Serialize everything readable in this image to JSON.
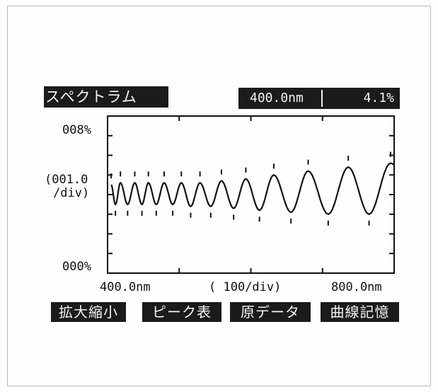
{
  "header": {
    "title": "スペクトラム",
    "cursor_wavelength": "400.0nm",
    "cursor_value": "4.1%"
  },
  "axes": {
    "y_top_label": "008%",
    "y_scale_label": "(001.0",
    "y_unit_label": "/div)",
    "y_bottom_label": "000%",
    "x_left_label": "400.0nm",
    "x_scale_label": "( 100/div)",
    "x_right_label": "800.0nm"
  },
  "buttons": {
    "zoom": "拡大縮小",
    "peak_table": "ピーク表",
    "raw_data": "原データ",
    "curve_memory": "曲線記憶"
  },
  "colors": {
    "panel": "#1b1b1b",
    "panel_text": "#f4f4f4",
    "curve": "#111111"
  },
  "chart_data": {
    "type": "line",
    "xlabel": "( 100/div)",
    "ylabel": "(001.0 /div)",
    "xlim": [
      400,
      800
    ],
    "ylim": [
      0,
      8
    ],
    "grid": false,
    "maxima_x": [
      405,
      418,
      438,
      457,
      479,
      503,
      529,
      559,
      593,
      632,
      680,
      736,
      795
    ],
    "maxima_y": [
      4.5,
      4.6,
      4.6,
      4.6,
      4.6,
      4.6,
      4.6,
      4.7,
      4.8,
      5.0,
      5.2,
      5.4,
      5.6
    ],
    "minima_x": [
      411,
      428,
      448,
      468,
      491,
      516,
      544,
      576,
      612,
      656,
      708,
      765
    ],
    "minima_y": [
      3.5,
      3.5,
      3.5,
      3.5,
      3.5,
      3.4,
      3.4,
      3.3,
      3.2,
      3.1,
      3.0,
      3.0
    ]
  }
}
